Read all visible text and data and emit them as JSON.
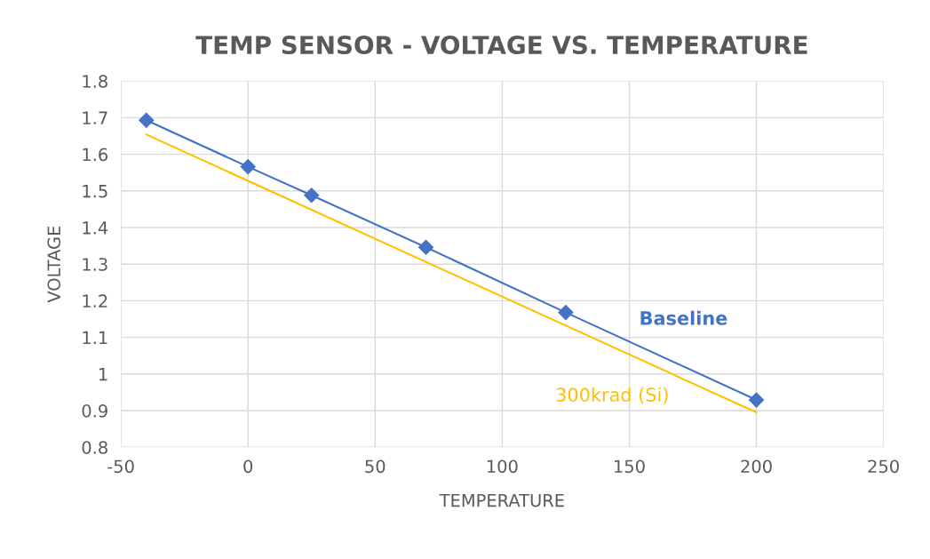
{
  "chart_data": {
    "type": "line",
    "title": "TEMP SENSOR - VOLTAGE VS. TEMPERATURE",
    "xlabel": "TEMPERATURE",
    "ylabel": "VOLTAGE",
    "series": [
      {
        "name": "Baseline",
        "color": "#4472c4",
        "marker": "diamond",
        "x": [
          -40,
          0,
          25,
          70,
          125,
          200
        ],
        "values": [
          1.693,
          1.566,
          1.488,
          1.346,
          1.168,
          0.929
        ]
      },
      {
        "name": "300krad (Si)",
        "color": "#ffc000",
        "marker": "none",
        "x": [
          -40,
          200
        ],
        "values": [
          1.654,
          0.895
        ]
      }
    ],
    "xlim": [
      -50,
      250
    ],
    "xticks": [
      -50,
      0,
      50,
      100,
      150,
      200,
      250
    ],
    "ylim": [
      0.8,
      1.8
    ],
    "yticks": [
      {
        "value": 0.8,
        "label": "0.8"
      },
      {
        "value": 0.9,
        "label": "0.9"
      },
      {
        "value": 1.0,
        "label": "1"
      },
      {
        "value": 1.1,
        "label": "1.1"
      },
      {
        "value": 1.2,
        "label": "1.2"
      },
      {
        "value": 1.3,
        "label": "1.3"
      },
      {
        "value": 1.4,
        "label": "1.4"
      },
      {
        "value": 1.5,
        "label": "1.5"
      },
      {
        "value": 1.6,
        "label": "1.6"
      },
      {
        "value": 1.7,
        "label": "1.7"
      },
      {
        "value": 1.8,
        "label": "1.8"
      }
    ],
    "grid": true,
    "legend": false
  }
}
